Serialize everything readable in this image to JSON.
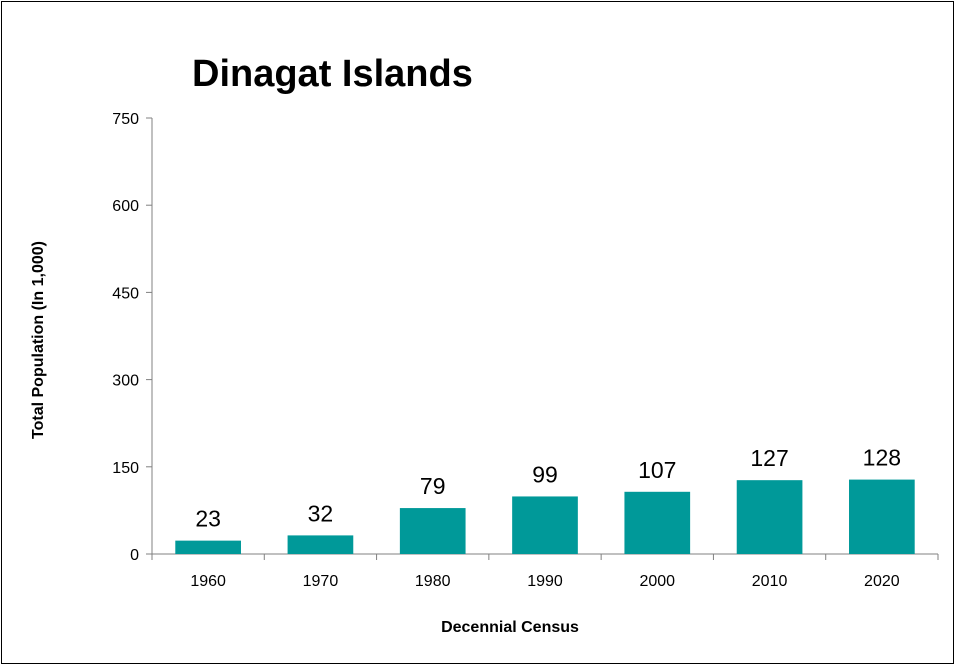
{
  "chart_data": {
    "type": "bar",
    "title": "Dinagat Islands",
    "xlabel": "Decennial Census",
    "ylabel": "Total Population (In 1,000)",
    "categories": [
      "1960",
      "1970",
      "1980",
      "1990",
      "2000",
      "2010",
      "2020"
    ],
    "values": [
      23,
      32,
      79,
      99,
      107,
      127,
      128
    ],
    "data_labels": [
      "23",
      "32",
      "79",
      "99",
      "107",
      "127",
      "128"
    ],
    "ylim": [
      0,
      750
    ],
    "yticks": [
      0,
      150,
      300,
      450,
      600,
      750
    ],
    "ytick_labels": [
      "0",
      "150",
      "300",
      "450",
      "600",
      "750"
    ],
    "bar_color": "#009999",
    "grid": false,
    "legend": "none"
  }
}
